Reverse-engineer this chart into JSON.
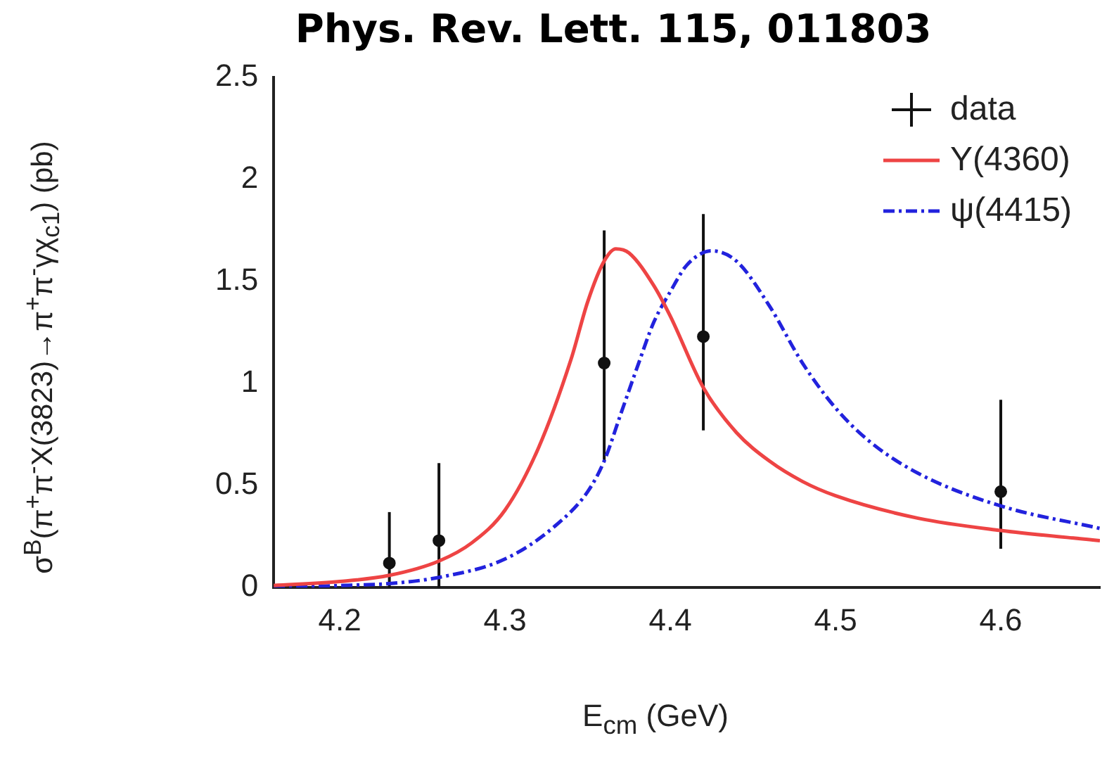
{
  "chart_data": {
    "type": "line",
    "title": "Phys. Rev. Lett. 115, 011803",
    "xlabel": "E$_{cm}$ (GeV)",
    "ylabel": "σ$^{B}$(π$^{+}$π$^{-}$X(3823)→π$^{+}$π$^{-}$γχ$_{c1}$) (pb)",
    "xlim": [
      4.16,
      4.66
    ],
    "xticks": [
      4.2,
      4.3,
      4.4,
      4.5,
      4.6
    ],
    "ylim": [
      0,
      2.5
    ],
    "yticks": [
      0,
      0.5,
      1,
      1.5,
      2,
      2.5
    ],
    "grid": false,
    "legend": "top right",
    "series": [
      {
        "name": "data",
        "type": "scatter",
        "color": "#111111",
        "marker": "circle",
        "x": [
          4.23,
          4.26,
          4.36,
          4.42,
          4.6
        ],
        "values": [
          0.12,
          0.23,
          1.1,
          1.23,
          0.47
        ],
        "errors": [
          [
            0.0,
            0.37
          ],
          [
            0.0,
            0.61
          ],
          [
            0.62,
            1.75
          ],
          [
            0.77,
            1.83
          ],
          [
            0.19,
            0.92
          ]
        ]
      },
      {
        "name": "Y(4360)",
        "color": "#ee4444",
        "marker": "none",
        "line_style": "solid",
        "x": [
          4.16,
          4.2,
          4.23,
          4.26,
          4.28,
          4.3,
          4.32,
          4.34,
          4.35,
          4.36,
          4.367,
          4.375,
          4.39,
          4.4,
          4.42,
          4.44,
          4.46,
          4.48,
          4.5,
          4.55,
          4.6,
          4.66
        ],
        "values": [
          0.01,
          0.03,
          0.06,
          0.13,
          0.22,
          0.38,
          0.68,
          1.12,
          1.4,
          1.6,
          1.66,
          1.64,
          1.48,
          1.33,
          0.98,
          0.76,
          0.62,
          0.52,
          0.45,
          0.34,
          0.28,
          0.23
        ]
      },
      {
        "name": "ψ(4415)",
        "color": "#2222dd",
        "marker": "none",
        "line_style": "dashed",
        "x": [
          4.16,
          4.2,
          4.23,
          4.26,
          4.3,
          4.33,
          4.35,
          4.36,
          4.37,
          4.38,
          4.39,
          4.4,
          4.41,
          4.425,
          4.44,
          4.46,
          4.48,
          4.5,
          4.52,
          4.55,
          4.6,
          4.66
        ],
        "values": [
          0.0,
          0.01,
          0.02,
          0.05,
          0.14,
          0.3,
          0.47,
          0.62,
          0.85,
          1.08,
          1.3,
          1.45,
          1.58,
          1.65,
          1.6,
          1.38,
          1.1,
          0.88,
          0.72,
          0.56,
          0.4,
          0.29
        ]
      }
    ]
  }
}
